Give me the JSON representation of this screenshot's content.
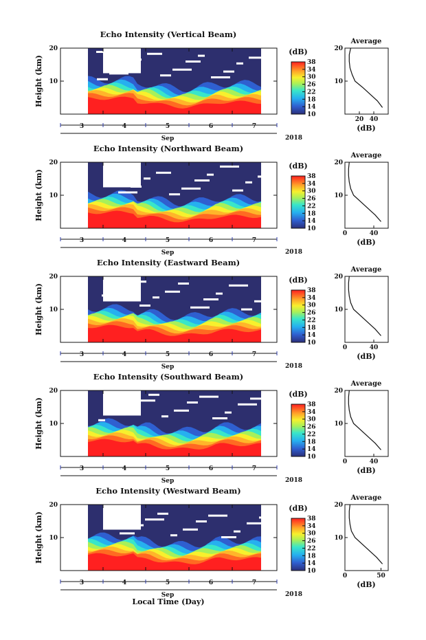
{
  "figure": {
    "xlabel": "Local Time (Day)",
    "month": "Sep",
    "year": "2018",
    "day_ticks": [
      "3",
      "4",
      "5",
      "6",
      "7"
    ],
    "colorbar_unit": "(dB)",
    "colorbar_ticks": [
      "10",
      "14",
      "18",
      "22",
      "26",
      "30",
      "34",
      "38"
    ],
    "average_title": "Average",
    "average_xlabel": "(dB)",
    "colors": {
      "no_data": "#ffffff",
      "low": "#2d2f6e",
      "high": "#ff2020"
    }
  },
  "chart_data": [
    {
      "type": "heatmap",
      "title": "Echo Intensity (Vertical Beam)",
      "ylabel": "Height (km)",
      "yticks": [
        "10",
        "20"
      ],
      "ylim": [
        0,
        20
      ],
      "zlim": [
        10,
        38
      ],
      "avg_xticks": [
        "20",
        "40"
      ],
      "avg_profile": {
        "height_km": [
          2,
          4,
          6,
          8,
          10,
          12,
          14,
          16,
          18,
          20
        ],
        "db": [
          52,
          45,
          35,
          25,
          14,
          10,
          7,
          6,
          6,
          8
        ]
      }
    },
    {
      "type": "heatmap",
      "title": "Echo Intensity (Northward Beam)",
      "ylabel": "Height (km)",
      "yticks": [
        "10",
        "20"
      ],
      "ylim": [
        0,
        20
      ],
      "zlim": [
        10,
        38
      ],
      "avg_xticks": [
        "0",
        "40"
      ],
      "avg_profile": {
        "height_km": [
          2,
          4,
          6,
          8,
          10,
          12,
          14,
          16,
          18,
          20
        ],
        "db": [
          50,
          42,
          32,
          22,
          12,
          8,
          6,
          5,
          5,
          6
        ]
      }
    },
    {
      "type": "heatmap",
      "title": "Echo Intensity (Eastward Beam)",
      "ylabel": "Height (km)",
      "yticks": [
        "10",
        "20"
      ],
      "ylim": [
        0,
        20
      ],
      "zlim": [
        10,
        38
      ],
      "avg_xticks": [
        "0",
        "40"
      ],
      "avg_profile": {
        "height_km": [
          2,
          4,
          6,
          8,
          10,
          12,
          14,
          16,
          18,
          20
        ],
        "db": [
          50,
          42,
          32,
          22,
          12,
          8,
          6,
          5,
          5,
          6
        ]
      }
    },
    {
      "type": "heatmap",
      "title": "Echo Intensity (Southward Beam)",
      "ylabel": "Height (km)",
      "yticks": [
        "10",
        "20"
      ],
      "ylim": [
        0,
        20
      ],
      "zlim": [
        10,
        38
      ],
      "avg_xticks": [
        "0",
        "40"
      ],
      "avg_profile": {
        "height_km": [
          2,
          4,
          6,
          8,
          10,
          12,
          14,
          16,
          18,
          20
        ],
        "db": [
          50,
          42,
          32,
          22,
          12,
          8,
          6,
          5,
          5,
          6
        ]
      }
    },
    {
      "type": "heatmap",
      "title": "Echo Intensity (Westward Beam)",
      "ylabel": "Height (km)",
      "yticks": [
        "10",
        "20"
      ],
      "ylim": [
        0,
        20
      ],
      "zlim": [
        10,
        38
      ],
      "avg_xticks": [
        "0",
        "50"
      ],
      "avg_profile": {
        "height_km": [
          2,
          4,
          6,
          8,
          10,
          12,
          14,
          16,
          18,
          20
        ],
        "db": [
          52,
          44,
          34,
          24,
          14,
          9,
          7,
          6,
          6,
          7
        ]
      }
    }
  ]
}
